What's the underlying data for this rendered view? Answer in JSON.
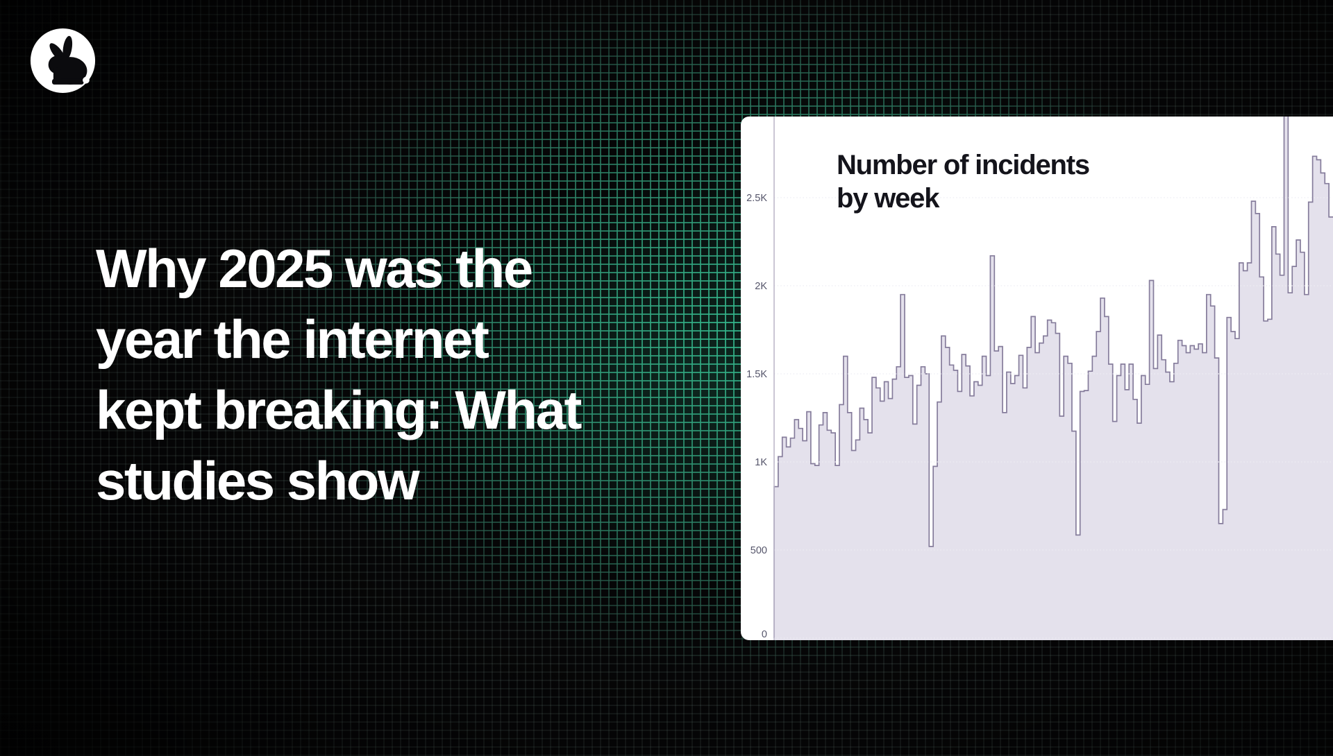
{
  "page": {
    "accent_green": "#36c496",
    "background_color": "#060607",
    "title_color": "#ffffff"
  },
  "logo": {
    "icon": "rabbit-icon",
    "circle_color": "#ffffff",
    "glyph_color": "#0b0b0e"
  },
  "hero": {
    "title": "Why 2025 was the\nyear the internet\nkept breaking: What\nstudies show"
  },
  "chart_data": {
    "type": "area",
    "title": "Number of incidents\nby week",
    "xlabel": "",
    "ylabel": "",
    "x_unit": "week",
    "n_points": 137,
    "ylim": [
      0,
      2970
    ],
    "y_axis_clipped_peak": true,
    "grid": "horizontal-dotted",
    "legend": "none",
    "y_ticks": [
      {
        "label": "0",
        "value": 0
      },
      {
        "label": "500",
        "value": 500
      },
      {
        "label": "1K",
        "value": 1000
      },
      {
        "label": "1.5K",
        "value": 1500
      },
      {
        "label": "2K",
        "value": 2000
      },
      {
        "label": "2.5K",
        "value": 2500
      }
    ],
    "values": [
      860,
      1030,
      1140,
      1085,
      1135,
      1240,
      1190,
      1120,
      1285,
      990,
      980,
      1210,
      1280,
      1180,
      1165,
      980,
      1325,
      1600,
      1280,
      1065,
      1125,
      1305,
      1240,
      1165,
      1480,
      1420,
      1345,
      1455,
      1360,
      1470,
      1540,
      1950,
      1480,
      1490,
      1215,
      1435,
      1540,
      1500,
      520,
      975,
      1340,
      1715,
      1650,
      1550,
      1520,
      1400,
      1610,
      1545,
      1375,
      1455,
      1435,
      1600,
      1490,
      2170,
      1630,
      1655,
      1280,
      1510,
      1445,
      1490,
      1605,
      1420,
      1650,
      1825,
      1620,
      1675,
      1715,
      1805,
      1790,
      1730,
      1260,
      1600,
      1560,
      1175,
      585,
      1400,
      1405,
      1515,
      1600,
      1740,
      1930,
      1825,
      1555,
      1230,
      1490,
      1555,
      1410,
      1555,
      1355,
      1220,
      1490,
      1440,
      2030,
      1530,
      1720,
      1580,
      1510,
      1455,
      1560,
      1690,
      1660,
      1620,
      1660,
      1640,
      1670,
      1620,
      1950,
      1885,
      1590,
      650,
      730,
      1820,
      1740,
      1700,
      2130,
      2085,
      2130,
      2480,
      2410,
      2050,
      1800,
      1810,
      2335,
      2180,
      2060,
      2990,
      1960,
      2110,
      2260,
      2190,
      1950,
      2475,
      2735,
      2715,
      2640,
      2580,
      2390
    ],
    "colors": {
      "panel_bg": "#ffffff",
      "area_fill": "#e4e1ec",
      "area_stroke": "#857c9b",
      "axis_line": "#bcb7ca",
      "gridline": "#ededf3",
      "tick_text": "#55556a",
      "title_text": "#14141b"
    }
  }
}
